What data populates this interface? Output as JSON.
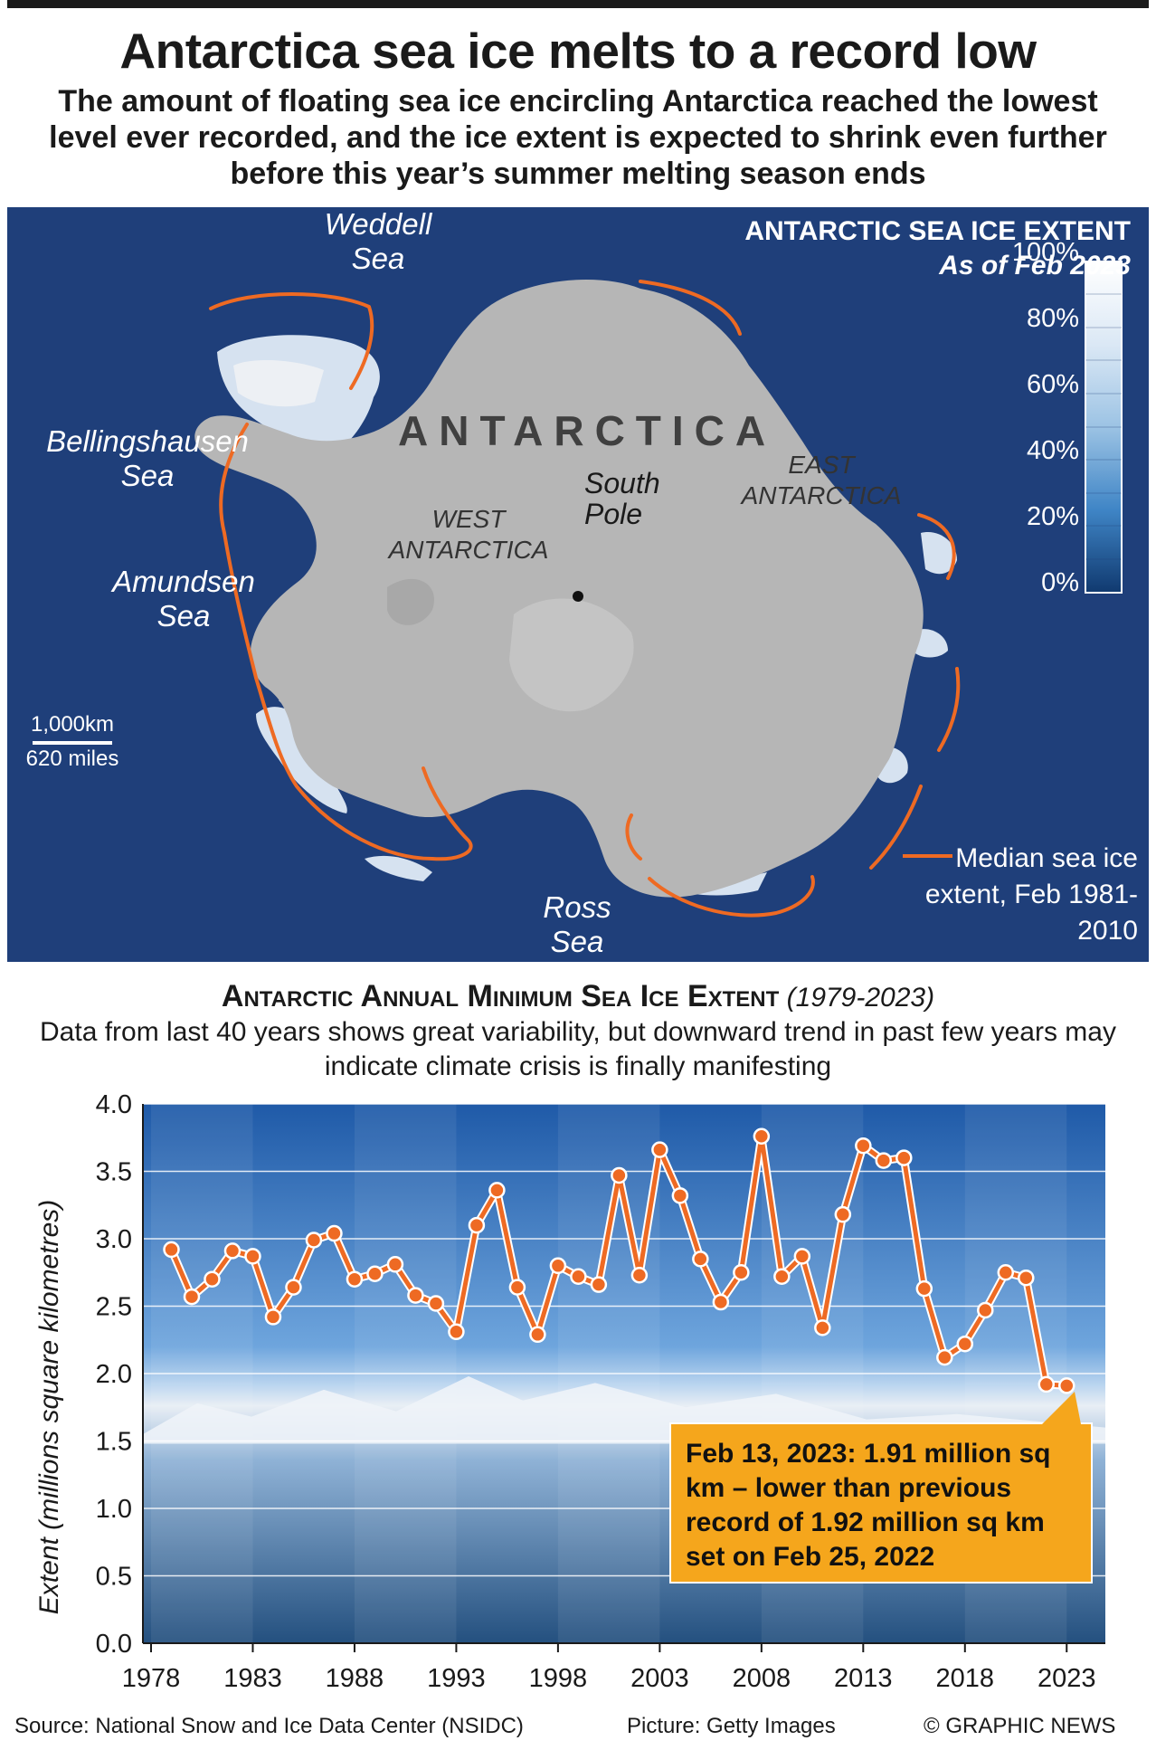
{
  "header": {
    "title": "Antarctica sea ice melts to a record low",
    "subtitle": "The amount of floating sea ice encircling Antarctica reached the lowest level ever recorded, and the ice extent is expected to shrink even further before this year’s summer melting season ends"
  },
  "map": {
    "legend_title": "ANTARCTIC SEA ICE EXTENT",
    "legend_subtitle": "As of Feb 2023",
    "scale_ticks": [
      "100%",
      "80%",
      "60%",
      "40%",
      "20%",
      "0%"
    ],
    "continent_label": "ANTARCTICA",
    "regions": {
      "west": "WEST ANTARCTICA",
      "east": "EAST ANTARCTICA",
      "pole": "South Pole"
    },
    "seas": {
      "weddell": "Weddell Sea",
      "bellingshausen": "Bellingshausen Sea",
      "amundsen": "Amundsen Sea",
      "ross": "Ross Sea"
    },
    "scale_bar": {
      "km": "1,000km",
      "miles": "620 miles"
    },
    "median_legend": "Median sea ice extent, Feb 1981-2010",
    "colors": {
      "ocean": "#1f3f7a",
      "land": "#b4b4b4",
      "median_line": "#ee6a23",
      "ice": "#e6f0fa"
    }
  },
  "chart_data": {
    "type": "line",
    "title": "Antarctic Annual Minimum Sea Ice Extent",
    "title_years": "(1979-2023)",
    "subtitle": "Data from last 40 years shows great variability, but downward trend in past few years may indicate climate crisis is finally manifesting",
    "ylabel": "Extent (millions square kilometres)",
    "xlabel": "",
    "ylim": [
      0,
      4.0
    ],
    "yticks": [
      "0.0",
      "0.5",
      "1.0",
      "1.5",
      "2.0",
      "2.5",
      "3.0",
      "3.5",
      "4.0"
    ],
    "xticks": [
      "1978",
      "1983",
      "1988",
      "1993",
      "1998",
      "2003",
      "2008",
      "2013",
      "2018",
      "2023"
    ],
    "x": [
      1979,
      1980,
      1981,
      1982,
      1983,
      1984,
      1985,
      1986,
      1987,
      1988,
      1989,
      1990,
      1991,
      1992,
      1993,
      1994,
      1995,
      1996,
      1997,
      1998,
      1999,
      2000,
      2001,
      2002,
      2003,
      2004,
      2005,
      2006,
      2007,
      2008,
      2009,
      2010,
      2011,
      2012,
      2013,
      2014,
      2015,
      2016,
      2017,
      2018,
      2019,
      2020,
      2021,
      2022,
      2023
    ],
    "series": [
      {
        "values": [
          2.92,
          2.57,
          2.7,
          2.91,
          2.87,
          2.42,
          2.64,
          2.99,
          3.04,
          2.7,
          2.74,
          2.81,
          2.58,
          2.52,
          2.31,
          3.1,
          3.36,
          2.64,
          2.29,
          2.8,
          2.72,
          2.66,
          3.47,
          2.73,
          3.66,
          3.32,
          2.85,
          2.53,
          2.75,
          3.76,
          2.72,
          2.87,
          2.34,
          3.18,
          3.69,
          3.58,
          3.6,
          2.63,
          2.12,
          2.22,
          2.47,
          2.75,
          2.71,
          1.92,
          1.91
        ]
      }
    ],
    "grid": true,
    "annotation": "Feb 13, 2023: 1.91 million sq km – lower than previous record of 1.92 million sq km set on Feb 25, 2022",
    "colors": {
      "line": "#ee6a23",
      "callout": "#f5a61c",
      "sky": "#3d79c4",
      "water": "#2a5a8e"
    }
  },
  "footer": {
    "source": "Source: National Snow and Ice Data Center (NSIDC)",
    "picture": "Picture: Getty Images",
    "credit": "© GRAPHIC NEWS"
  }
}
